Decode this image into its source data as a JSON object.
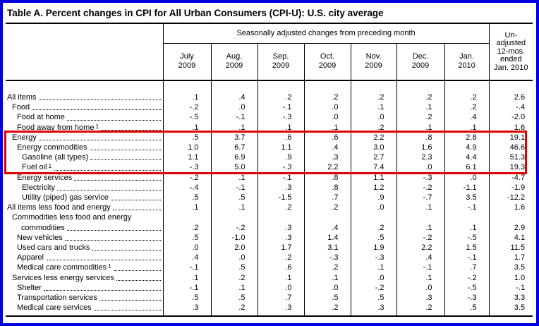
{
  "title": "Table A. Percent changes in CPI for All Urban Consumers (CPI-U): U.S. city average",
  "colors": {
    "frame_border": "#0000e1",
    "highlight_box": "#e00000"
  },
  "table": {
    "group_header": "Seasonally adjusted changes from preceding month",
    "unadjusted_header": [
      "Un-",
      "adjusted",
      "12-mos.",
      "ended",
      "Jan. 2010"
    ],
    "month_columns": [
      [
        "July",
        "2009"
      ],
      [
        "Aug.",
        "2009"
      ],
      [
        "Sep.",
        "2009"
      ],
      [
        "Oct.",
        "2009"
      ],
      [
        "Nov.",
        "2009"
      ],
      [
        "Dec.",
        "2009"
      ],
      [
        "Jan.",
        "2010"
      ]
    ],
    "rows": [
      {
        "label": "All items",
        "indent": 0,
        "values": [
          ".1",
          ".4",
          ".2",
          ".2",
          ".2",
          ".2",
          ".2",
          "2.6"
        ]
      },
      {
        "label": "Food",
        "indent": 1,
        "values": [
          "-.2",
          ".0",
          "-.1",
          ".0",
          ".1",
          ".1",
          ".2",
          "-.4"
        ]
      },
      {
        "label": "Food at home",
        "indent": 2,
        "values": [
          "-.5",
          "-.1",
          "-.3",
          ".0",
          ".0",
          ".2",
          ".4",
          "-2.0"
        ]
      },
      {
        "label": "Food away from home",
        "sup": "1",
        "indent": 2,
        "values": [
          ".1",
          ".1",
          ".1",
          ".1",
          ".2",
          ".1",
          ".1",
          "1.6"
        ]
      },
      {
        "label": "Energy",
        "indent": 1,
        "highlight": true,
        "values": [
          ".5",
          "3.7",
          ".6",
          ".6",
          "2.2",
          ".8",
          "2.8",
          "19.1"
        ]
      },
      {
        "label": "Energy commodities",
        "indent": 2,
        "highlight": true,
        "values": [
          "1.0",
          "6.7",
          "1.1",
          ".4",
          "3.0",
          "1.6",
          "4.9",
          "46.6"
        ]
      },
      {
        "label": "Gasoline (all types)",
        "indent": 3,
        "highlight": true,
        "values": [
          "1.1",
          "6.9",
          ".9",
          ".3",
          "2.7",
          "2.3",
          "4.4",
          "51.3"
        ]
      },
      {
        "label": "Fuel oil",
        "sup": "1",
        "indent": 3,
        "highlight": true,
        "values": [
          "-.3",
          "5.0",
          "-.3",
          "2.2",
          "7.4",
          ".0",
          "6.1",
          "19.3"
        ]
      },
      {
        "label": "Energy services",
        "indent": 2,
        "values": [
          "-.2",
          ".1",
          "-.1",
          ".8",
          "1.1",
          "-.3",
          ".0",
          "-4.7"
        ]
      },
      {
        "label": "Electricity",
        "indent": 3,
        "values": [
          "-.4",
          "-.1",
          ".3",
          ".8",
          "1.2",
          "-.2",
          "-1.1",
          "-1.9"
        ]
      },
      {
        "label": "Utility (piped) gas service",
        "indent": 3,
        "values": [
          ".5",
          ".5",
          "-1.5",
          ".7",
          ".9",
          "-.7",
          "3.5",
          "-12.2"
        ]
      },
      {
        "label": "All items less food and energy",
        "indent": 0,
        "values": [
          ".1",
          ".1",
          ".2",
          ".2",
          ".0",
          ".1",
          "-.1",
          "1.6"
        ]
      },
      {
        "label": "Commodities less food and energy",
        "label2": "commodities",
        "indent": 1,
        "values": [
          ".2",
          "-.2",
          ".3",
          ".4",
          ".2",
          ".1",
          ".1",
          "2.9"
        ]
      },
      {
        "label": "New vehicles",
        "indent": 2,
        "values": [
          ".5",
          "-1.0",
          ".3",
          "1.4",
          ".5",
          "-.2",
          "-.5",
          "4.1"
        ]
      },
      {
        "label": "Used cars and trucks",
        "indent": 2,
        "values": [
          ".0",
          "2.0",
          "1.7",
          "3.1",
          "1.9",
          "2.2",
          "1.5",
          "11.5"
        ]
      },
      {
        "label": "Apparel",
        "indent": 2,
        "values": [
          ".4",
          ".0",
          ".2",
          "-.3",
          "-.3",
          ".4",
          "-.1",
          "1.7"
        ]
      },
      {
        "label": "Medical care commodities",
        "sup": "1",
        "indent": 2,
        "values": [
          "-.1",
          ".5",
          ".6",
          ".2",
          ".1",
          "-.1",
          ".7",
          "3.5"
        ]
      },
      {
        "label": "Services less energy services",
        "indent": 1,
        "values": [
          ".1",
          ".2",
          ".1",
          ".1",
          ".0",
          ".1",
          "-.2",
          "1.0"
        ]
      },
      {
        "label": "Shelter",
        "indent": 2,
        "values": [
          "-.1",
          ".1",
          ".0",
          ".0",
          "-.2",
          ".0",
          "-.5",
          "-.1"
        ]
      },
      {
        "label": "Transportation services",
        "indent": 2,
        "values": [
          ".5",
          ".5",
          ".7",
          ".5",
          ".5",
          ".3",
          "-.3",
          "3.3"
        ]
      },
      {
        "label": "Medical care services",
        "indent": 2,
        "values": [
          ".3",
          ".2",
          ".3",
          ".2",
          ".3",
          ".2",
          ".5",
          "3.5"
        ]
      }
    ]
  }
}
